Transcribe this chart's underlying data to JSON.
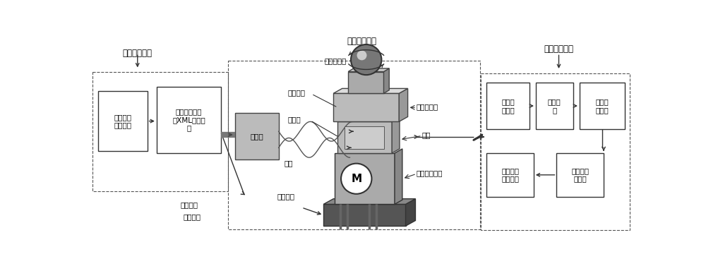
{
  "bg_color": "#ffffff",
  "modulation_unit_label": "信号调制单元",
  "transmission_unit_label": "信号发射单元",
  "reception_unit_label": "信号接收单元",
  "font_size_label": 8.5,
  "font_size_box": 7.5,
  "font_size_ann": 7.5
}
